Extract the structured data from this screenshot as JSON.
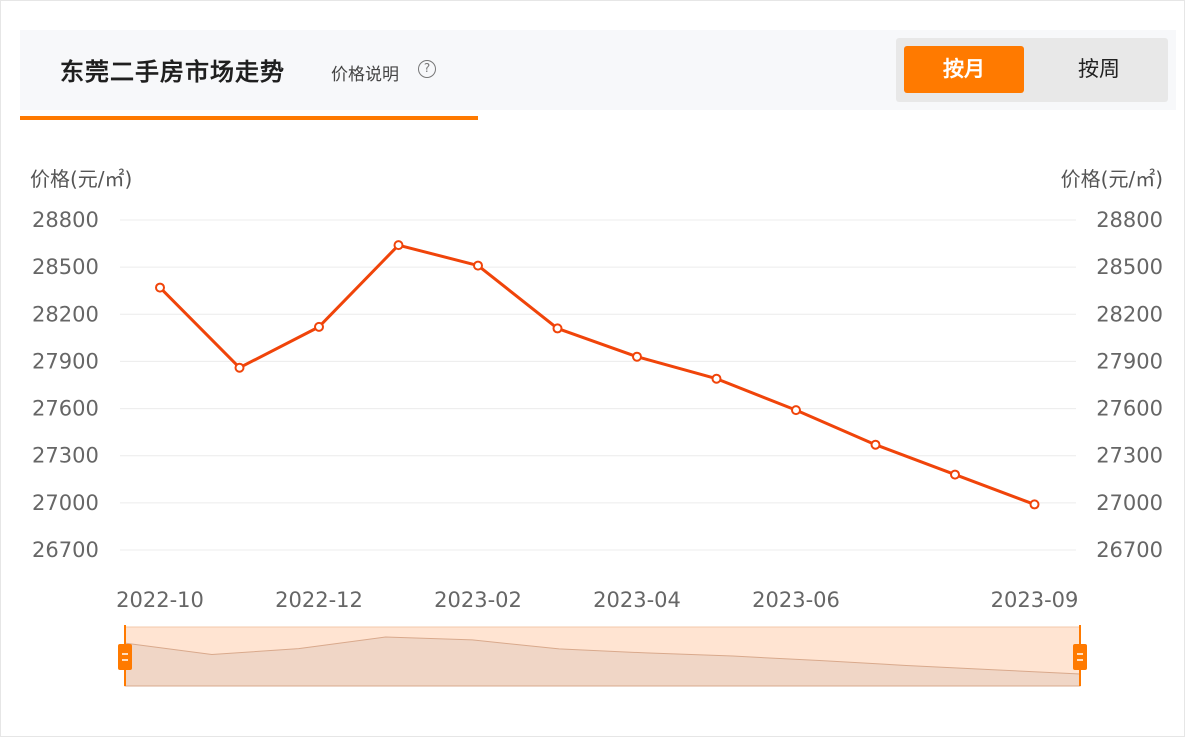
{
  "header": {
    "title": "东莞二手房市场走势",
    "price_note": "价格说明",
    "help_symbol": "?",
    "toggle": {
      "month_label": "按月",
      "week_label": "按周",
      "active": "month"
    }
  },
  "colors": {
    "accent": "#ff7a00",
    "line": "#f0440a",
    "brush_fill": "#ffe4d2",
    "brush_area": "#f0d6c6"
  },
  "chart_data": {
    "type": "line",
    "ylabel_left": "价格(元/㎡)",
    "ylabel_right": "价格(元/㎡)",
    "ylim": [
      26700,
      28800
    ],
    "y_ticks": [
      28800,
      28500,
      28200,
      27900,
      27600,
      27300,
      27000,
      26700
    ],
    "x": [
      "2022-10",
      "2022-11",
      "2022-12",
      "2023-01",
      "2023-02",
      "2023-03",
      "2023-04",
      "2023-05",
      "2023-06",
      "2023-07",
      "2023-08",
      "2023-09"
    ],
    "x_tick_labels": [
      "2022-10",
      "2022-12",
      "2023-02",
      "2023-04",
      "2023-06",
      "2023-09"
    ],
    "series": [
      {
        "values": [
          28370,
          27860,
          28120,
          28640,
          28510,
          28110,
          27930,
          27790,
          27590,
          27370,
          27180,
          26990
        ]
      }
    ],
    "grid": true
  }
}
